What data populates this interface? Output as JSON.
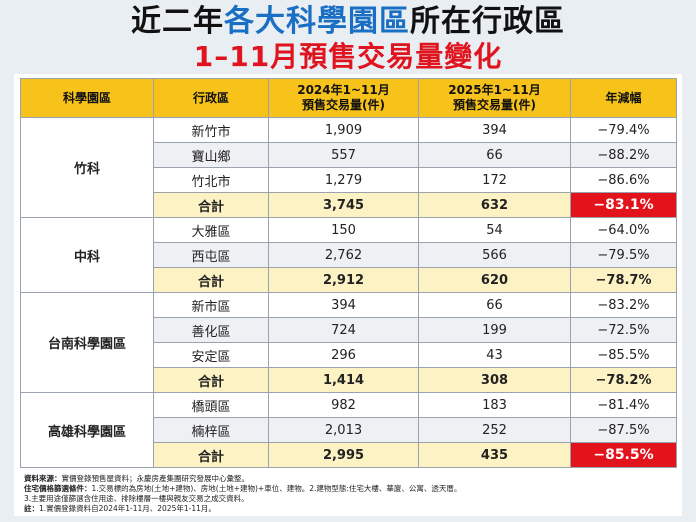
{
  "title": {
    "line1": [
      "近二年",
      "各大科學園區",
      "所在行政區"
    ],
    "line2": "1–11月預售交易量變化"
  },
  "table": {
    "header": [
      "科學園區",
      "行政區",
      "2024年1~11月\n預售交易量(件)",
      "2025年1~11月\n預售交易量(件)",
      "年減幅"
    ],
    "groups": [
      {
        "park": "竹科",
        "rows": [
          {
            "cells": [
              "新竹市",
              "1,909",
              "394",
              "−79.4%"
            ]
          },
          {
            "cells": [
              "寶山鄉",
              "557",
              "66",
              "−88.2%"
            ]
          },
          {
            "cells": [
              "竹北市",
              "1,279",
              "172",
              "−86.6%"
            ]
          },
          {
            "cells": [
              "合計",
              "3,745",
              "632",
              "−83.1%"
            ],
            "change_bg": "#e3131b"
          }
        ]
      },
      {
        "park": "中科",
        "rows": [
          {
            "cells": [
              "大雅區",
              "150",
              "54",
              "−64.0%"
            ]
          },
          {
            "cells": [
              "西屯區",
              "2,762",
              "566",
              "−79.5%"
            ]
          },
          {
            "cells": [
              "合計",
              "2,912",
              "620",
              "−78.7%"
            ]
          }
        ]
      },
      {
        "park": "台南科學園區",
        "rows": [
          {
            "cells": [
              "新市區",
              "394",
              "66",
              "−83.2%"
            ]
          },
          {
            "cells": [
              "善化區",
              "724",
              "199",
              "−72.5%"
            ]
          },
          {
            "cells": [
              "安定區",
              "296",
              "43",
              "−85.5%"
            ]
          },
          {
            "cells": [
              "合計",
              "1,414",
              "308",
              "−78.2%"
            ]
          }
        ]
      },
      {
        "park": "高雄科學園區",
        "rows": [
          {
            "cells": [
              "橋頭區",
              "982",
              "183",
              "−81.4%"
            ]
          },
          {
            "cells": [
              "楠梓區",
              "2,013",
              "252",
              "−87.5%"
            ]
          },
          {
            "cells": [
              "合計",
              "2,995",
              "435",
              "−85.5%"
            ],
            "change_bg": "#e3131b"
          }
        ]
      }
    ]
  },
  "notes": [
    {
      "label": "資料來源：",
      "text": "實價登錄預售屋資料；永慶房產集團研究發展中心彙整。"
    },
    {
      "label": "住宅價格篩選條件：",
      "text": "1.交易標的為房地(土地+建物)、房地(土地+建物)+車位、建物。2.建物型態:住宅大樓、華廈、公寓、透天厝。"
    },
    {
      "label": "",
      "text": "3.主要用途僅篩選含住用途、排除樓層一樓與親友交易之成交資料。"
    },
    {
      "label": "註：",
      "text": "1.實價登錄資料自2024年1-11月、2025年1-11月。"
    }
  ]
}
